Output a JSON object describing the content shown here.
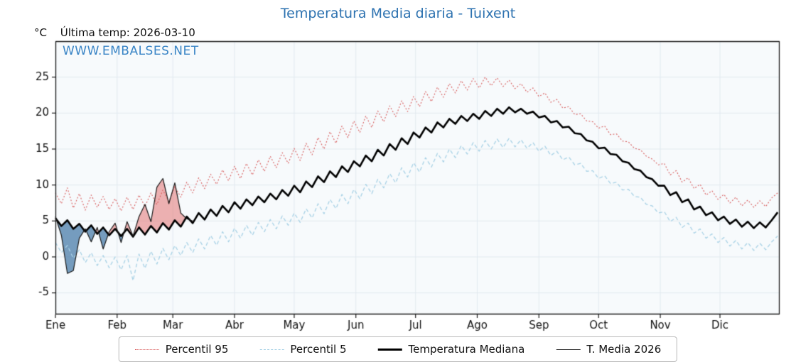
{
  "title": "Temperatura Media diaria - Tuixent",
  "header": {
    "unit": "°C",
    "last_temp": "Última temp: 2026-03-10"
  },
  "watermark": "WWW.EMBALSES.NET",
  "legend": {
    "items": [
      {
        "label": "Percentil 95"
      },
      {
        "label": "Percentil 5"
      },
      {
        "label": "Temperatura Mediana"
      },
      {
        "label": "T. Media 2026"
      }
    ]
  },
  "colors": {
    "title": "#2d72b0",
    "watermark": "#3a85c6",
    "p95": "#d85c5c",
    "p5": "#a8d2e6",
    "median": "#000000",
    "media2026": "#1a1a1a",
    "fill_above": "rgba(228,115,115,0.55)",
    "fill_below": "rgba(73,124,170,0.75)",
    "plot_bg": "#f7fafc",
    "grid": "#e2eaf0",
    "spine": "#1a1a1a",
    "tick_text": "#111111"
  },
  "chart_data": {
    "type": "line",
    "title": "Temperatura Media diaria - Tuixent",
    "xlabel": "",
    "ylabel": "°C",
    "x_unit": "day_of_year",
    "xlim": [
      1,
      365
    ],
    "ylim": [
      -8,
      30
    ],
    "grid": true,
    "legend_position": "bottom",
    "yticks": [
      -5,
      0,
      5,
      10,
      15,
      20,
      25
    ],
    "xticks": [
      {
        "label": "Ene",
        "day": 1
      },
      {
        "label": "Feb",
        "day": 32
      },
      {
        "label": "Mar",
        "day": 60
      },
      {
        "label": "Abr",
        "day": 91
      },
      {
        "label": "May",
        "day": 121
      },
      {
        "label": "Jun",
        "day": 152
      },
      {
        "label": "Jul",
        "day": 182
      },
      {
        "label": "Ago",
        "day": 213
      },
      {
        "label": "Sep",
        "day": 244
      },
      {
        "label": "Oct",
        "day": 274
      },
      {
        "label": "Nov",
        "day": 305
      },
      {
        "label": "Dic",
        "day": 335
      }
    ],
    "series": [
      {
        "name": "Percentil 95",
        "style": "dotted",
        "x": {
          "start": 1,
          "step": 3,
          "count": 122
        },
        "values": [
          8.9,
          7.4,
          9.6,
          6.8,
          8.8,
          6.5,
          8.6,
          6.9,
          8.4,
          6.6,
          8.1,
          6.4,
          8.3,
          6.6,
          8.6,
          7.0,
          8.9,
          7.3,
          9.3,
          7.7,
          9.8,
          8.3,
          10.4,
          8.9,
          11.0,
          9.5,
          11.5,
          10.1,
          12.1,
          10.6,
          12.6,
          10.9,
          13.0,
          11.4,
          13.5,
          11.9,
          14.0,
          12.4,
          14.5,
          13.0,
          15.1,
          13.4,
          15.8,
          14.2,
          16.6,
          15.0,
          17.4,
          15.8,
          18.2,
          16.6,
          18.9,
          17.3,
          19.6,
          18.0,
          20.3,
          18.8,
          21.0,
          19.5,
          21.7,
          20.2,
          22.3,
          20.9,
          23.0,
          21.6,
          23.6,
          22.2,
          24.1,
          22.8,
          24.5,
          23.2,
          24.8,
          23.5,
          25.0,
          23.8,
          24.9,
          23.7,
          24.6,
          23.4,
          24.1,
          22.9,
          23.5,
          22.3,
          22.8,
          21.5,
          21.9,
          20.7,
          20.9,
          19.8,
          19.9,
          18.9,
          18.8,
          17.9,
          18.2,
          17.0,
          17.1,
          16.1,
          16.0,
          15.1,
          14.9,
          14.0,
          13.6,
          12.8,
          13.0,
          11.4,
          12.0,
          10.4,
          11.0,
          9.5,
          10.1,
          8.6,
          9.2,
          8.0,
          8.7,
          7.5,
          8.3,
          7.1,
          7.9,
          6.9,
          7.8,
          7.0,
          8.2,
          8.9
        ]
      },
      {
        "name": "Percentil 5",
        "style": "dashed",
        "x": {
          "start": 1,
          "step": 3,
          "count": 122
        },
        "values": [
          2.0,
          0.6,
          1.6,
          -0.2,
          1.0,
          -0.8,
          0.6,
          -1.2,
          0.2,
          -1.5,
          0.0,
          -1.8,
          0.2,
          -3.3,
          0.4,
          -1.6,
          0.8,
          -1.0,
          1.2,
          -0.4,
          1.6,
          0.2,
          2.0,
          0.6,
          2.5,
          1.1,
          3.0,
          1.6,
          3.5,
          2.1,
          4.0,
          2.6,
          4.4,
          3.0,
          4.8,
          3.5,
          5.2,
          3.9,
          5.7,
          4.4,
          6.1,
          4.8,
          6.7,
          5.4,
          7.4,
          6.0,
          8.0,
          6.7,
          8.7,
          7.4,
          9.4,
          8.1,
          10.1,
          8.8,
          10.8,
          9.6,
          11.6,
          10.3,
          12.4,
          11.1,
          13.1,
          11.8,
          13.8,
          12.5,
          14.4,
          13.2,
          15.0,
          13.8,
          15.5,
          14.3,
          15.9,
          14.7,
          16.2,
          15.0,
          16.4,
          15.2,
          16.5,
          15.3,
          16.3,
          15.1,
          15.9,
          14.7,
          15.4,
          14.1,
          14.7,
          13.5,
          13.9,
          12.8,
          13.0,
          11.9,
          12.0,
          10.9,
          11.3,
          10.2,
          10.4,
          9.3,
          9.4,
          8.4,
          8.3,
          7.3,
          7.1,
          6.1,
          6.3,
          4.9,
          5.5,
          4.1,
          4.7,
          3.3,
          3.9,
          2.6,
          3.2,
          2.0,
          2.7,
          1.5,
          2.3,
          1.1,
          2.0,
          0.9,
          1.9,
          1.0,
          2.1,
          2.9
        ]
      },
      {
        "name": "Temperatura Mediana",
        "style": "solid-thick",
        "x": {
          "start": 1,
          "step": 3,
          "count": 122
        },
        "values": [
          5.4,
          4.3,
          5.1,
          3.9,
          4.6,
          3.5,
          4.4,
          3.2,
          4.1,
          3.0,
          3.9,
          2.9,
          3.9,
          2.8,
          4.1,
          3.1,
          4.3,
          3.4,
          4.7,
          3.8,
          5.1,
          4.2,
          5.6,
          4.7,
          6.1,
          5.2,
          6.6,
          5.7,
          7.1,
          6.2,
          7.6,
          6.7,
          8.0,
          7.2,
          8.4,
          7.6,
          8.8,
          8.0,
          9.3,
          8.5,
          9.9,
          9.0,
          10.5,
          9.7,
          11.2,
          10.4,
          11.9,
          11.1,
          12.6,
          11.8,
          13.3,
          12.6,
          14.1,
          13.3,
          14.9,
          14.1,
          15.7,
          14.9,
          16.5,
          15.7,
          17.3,
          16.6,
          18.0,
          17.3,
          18.7,
          18.0,
          19.2,
          18.5,
          19.6,
          18.9,
          19.9,
          19.2,
          20.3,
          19.6,
          20.6,
          19.9,
          20.8,
          20.1,
          20.6,
          19.9,
          20.2,
          19.4,
          19.6,
          18.7,
          18.9,
          18.0,
          18.1,
          17.2,
          17.1,
          16.2,
          16.0,
          15.1,
          15.2,
          14.3,
          14.2,
          13.3,
          13.1,
          12.2,
          12.0,
          11.1,
          10.8,
          9.9,
          9.9,
          8.6,
          9.0,
          7.6,
          8.0,
          6.6,
          7.0,
          5.8,
          6.2,
          5.1,
          5.6,
          4.6,
          5.2,
          4.2,
          4.9,
          4.0,
          4.8,
          4.1,
          5.1,
          6.2
        ]
      },
      {
        "name": "T. Media 2026",
        "style": "solid-thin",
        "fill_vs": "Temperatura Mediana",
        "x": {
          "start": 1,
          "step": 3,
          "count": 24
        },
        "values": [
          5.6,
          3.0,
          -2.3,
          -1.9,
          2.6,
          3.9,
          2.1,
          4.1,
          1.1,
          3.5,
          4.7,
          2.0,
          4.9,
          2.9,
          5.6,
          7.3,
          4.9,
          9.7,
          10.9,
          7.4,
          10.3,
          6.1,
          5.3,
          5.0
        ]
      }
    ]
  }
}
